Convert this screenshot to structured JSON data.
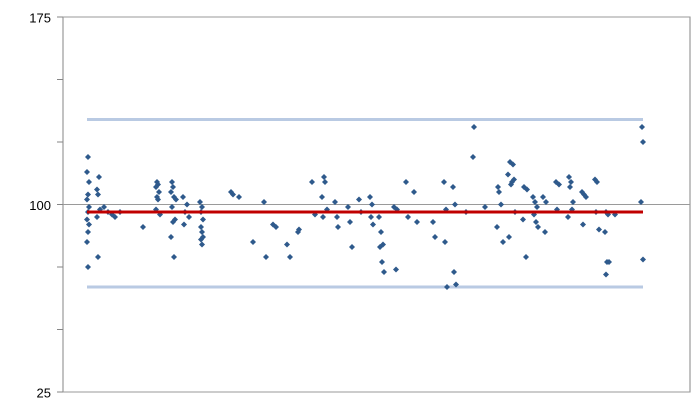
{
  "chart_data": {
    "type": "scatter",
    "ylim": [
      25,
      175
    ],
    "yticks": [
      25,
      100,
      175
    ],
    "minor_yticks": [
      50,
      75,
      125,
      150
    ],
    "xlim": [
      0,
      627
    ],
    "grid": true,
    "center_line": {
      "value": 97,
      "color": "#c00000"
    },
    "control_limits": {
      "values": [
        134,
        67
      ],
      "color": "#b9cae3"
    },
    "series": [
      {
        "color": "#2f5a8c",
        "x": [
          25,
          24,
          26,
          25,
          24,
          26,
          25,
          24,
          26,
          25,
          24,
          25,
          36,
          34,
          35,
          37,
          34,
          35,
          41,
          45,
          49,
          52,
          57,
          80,
          94,
          95,
          93,
          96,
          94,
          95,
          93,
          97,
          109,
          110,
          108,
          111,
          113,
          109,
          112,
          110,
          108,
          111,
          120,
          124,
          122,
          126,
          121,
          137,
          139,
          138,
          140,
          138,
          139,
          140,
          138,
          139,
          168,
          170,
          176,
          190,
          201,
          203,
          210,
          213,
          224,
          227,
          236,
          235,
          249,
          252,
          261,
          262,
          259,
          264,
          260,
          272,
          274,
          275,
          285,
          287,
          289,
          296,
          298,
          307,
          309,
          308,
          310,
          316,
          318,
          320,
          317,
          319,
          321,
          331,
          334,
          333,
          343,
          345,
          351,
          354,
          370,
          372,
          381,
          383,
          382,
          384,
          390,
          392,
          391,
          393,
          403,
          411,
          410,
          422,
          435,
          436,
          438,
          434,
          440,
          447,
          450,
          445,
          451,
          449,
          448,
          452,
          446,
          461,
          464,
          460,
          463,
          470,
          472,
          474,
          471,
          473,
          475,
          480,
          483,
          482,
          493,
          496,
          494,
          506,
          508,
          507,
          510,
          509,
          505,
          519,
          521,
          523,
          520,
          532,
          534,
          533,
          536,
          543,
          545,
          542,
          544,
          546,
          543,
          552,
          579,
          580,
          578,
          580
        ],
        "values": [
          119,
          113,
          109,
          104,
          102,
          99,
          97,
          94,
          92,
          89,
          85,
          75,
          111,
          106,
          104,
          98,
          95,
          79,
          99,
          97,
          96,
          95,
          97,
          91,
          109,
          108,
          107,
          105,
          103,
          102,
          98,
          96,
          109,
          107,
          105,
          103,
          102,
          99,
          94,
          93,
          87,
          79,
          103,
          100,
          97,
          95,
          92,
          101,
          99,
          97,
          94,
          91,
          89,
          87,
          86,
          84,
          105,
          104,
          103,
          85,
          101,
          79,
          92,
          91,
          84,
          79,
          90,
          89,
          109,
          96,
          111,
          109,
          103,
          98,
          95,
          101,
          95,
          91,
          99,
          93,
          83,
          102,
          97,
          103,
          100,
          95,
          92,
          95,
          89,
          84,
          83,
          77,
          73,
          99,
          98,
          74,
          109,
          95,
          105,
          93,
          93,
          87,
          109,
          98,
          85,
          67,
          107,
          100,
          73,
          68,
          97,
          131,
          119,
          99,
          107,
          105,
          100,
          91,
          85,
          117,
          116,
          112,
          110,
          109,
          108,
          97,
          87,
          107,
          106,
          94,
          79,
          103,
          101,
          99,
          96,
          93,
          91,
          103,
          101,
          89,
          109,
          108,
          98,
          111,
          109,
          107,
          101,
          98,
          95,
          105,
          104,
          103,
          92,
          110,
          109,
          97,
          90,
          97,
          96,
          89,
          77,
          77,
          72,
          96,
          131,
          125,
          101,
          78
        ]
      }
    ]
  }
}
